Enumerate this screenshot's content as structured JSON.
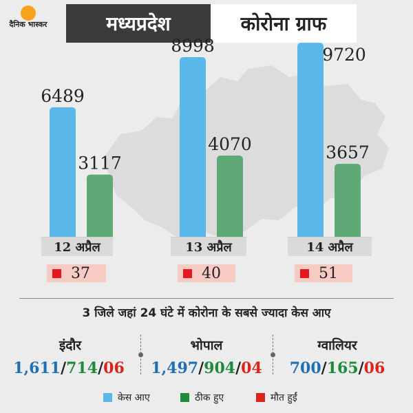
{
  "logo": {
    "text": "दैनिक भास्कर"
  },
  "header": {
    "title_left": "मध्यप्रदेश",
    "title_right": "कोरोना ग्राफ"
  },
  "colors": {
    "cases": "#5ab7ea",
    "recovered": "#5ea975",
    "deaths": "#e3191f"
  },
  "chart_data": {
    "type": "bar",
    "title": "मध्यप्रदेश कोरोना ग्राफ",
    "categories": [
      "12 अप्रैल",
      "13 अप्रैल",
      "14 अप्रैल"
    ],
    "series": [
      {
        "name": "केस आए",
        "values": [
          6489,
          8998,
          9720
        ]
      },
      {
        "name": "ठीक हुए",
        "values": [
          3117,
          4070,
          3657
        ]
      },
      {
        "name": "मौत हुईं",
        "values": [
          37,
          40,
          51
        ]
      }
    ],
    "value_labels": {
      "cases": [
        "6489",
        "8998",
        "9720"
      ],
      "recovered": [
        "3117",
        "4070",
        "3657"
      ],
      "deaths": [
        "37",
        "40",
        "51"
      ]
    },
    "ylim": [
      0,
      10000
    ],
    "grid": false,
    "legend": "bottom"
  },
  "subtitle": "3 जिले जहां 24 घंटे में कोरोना के सबसे ज्यादा केस आए",
  "districts": [
    {
      "name": "इंदौर",
      "cases": "1,611",
      "recovered": "714",
      "deaths": "06"
    },
    {
      "name": "भोपाल",
      "cases": "1,497",
      "recovered": "904",
      "deaths": "04"
    },
    {
      "name": "ग्वालियर",
      "cases": "700",
      "recovered": "165",
      "deaths": "06"
    }
  ],
  "separator": "/",
  "legend": {
    "cases": "केस आए",
    "recovered": "ठीक हुए",
    "deaths": "मौत हुईं"
  }
}
